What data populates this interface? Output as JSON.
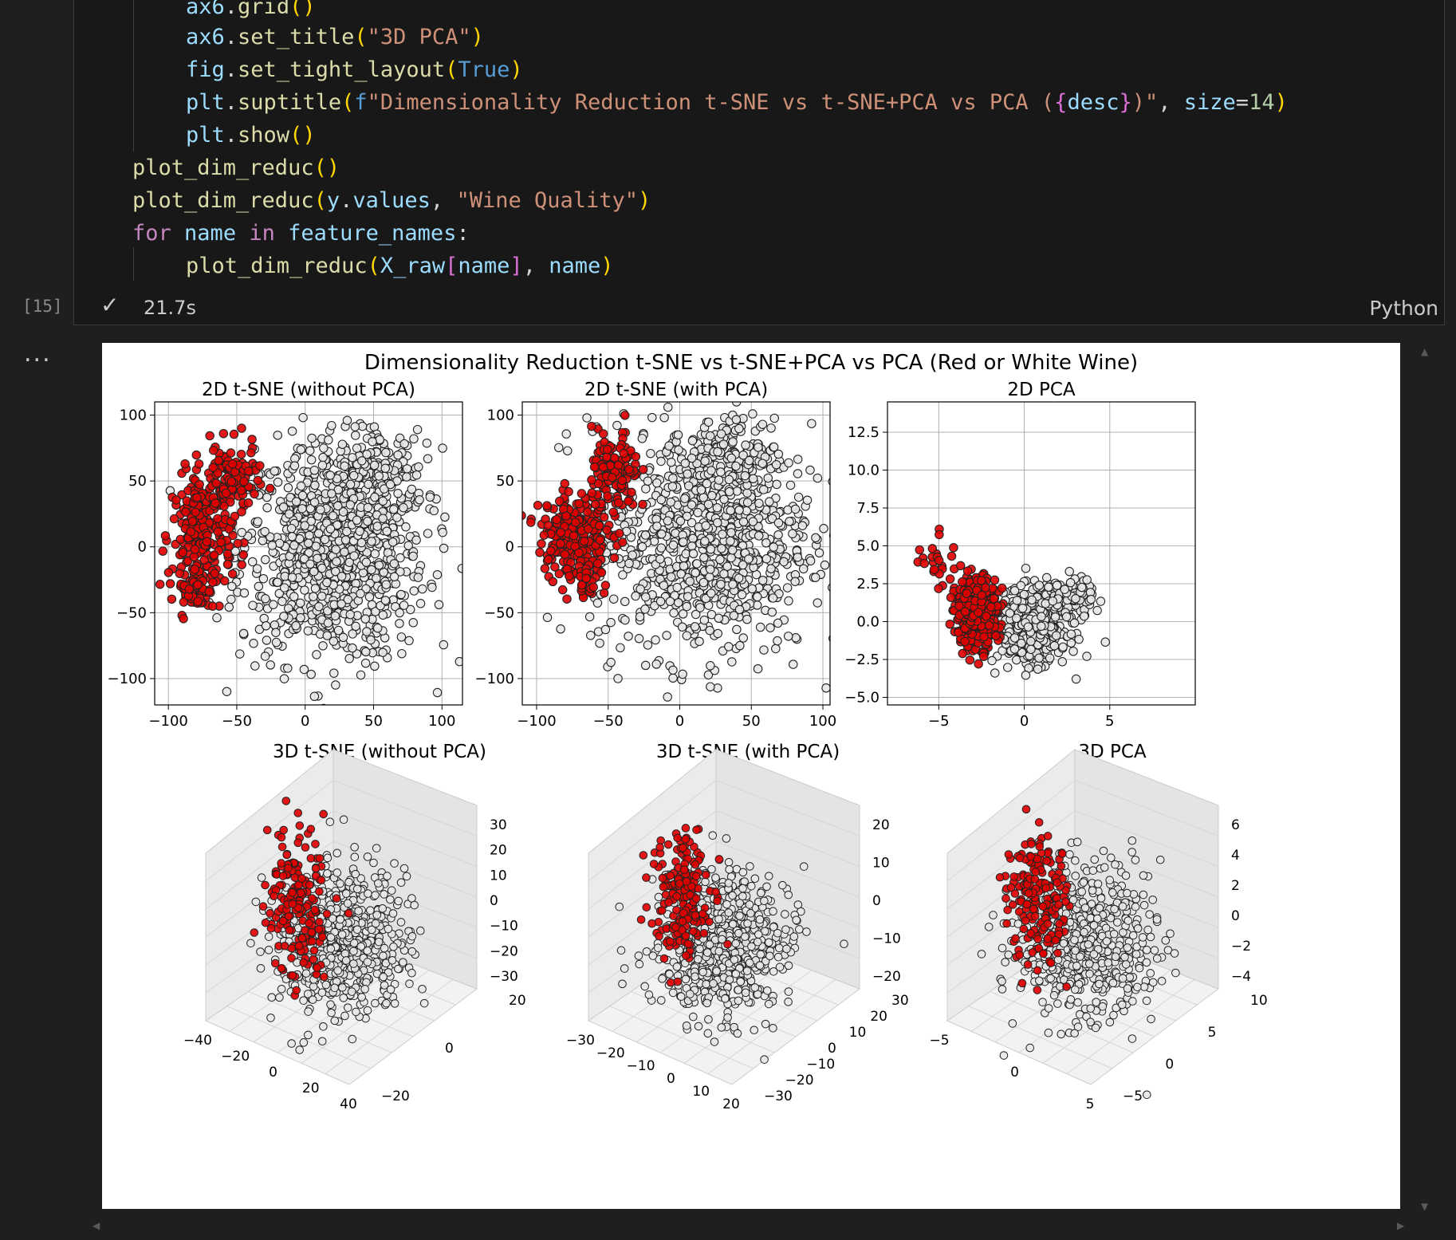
{
  "cell": {
    "execution_count": "[15]",
    "status": "✓",
    "duration": "21.7s",
    "language": "Python",
    "code_lines": [
      "ax6.grid()",
      "ax6.set_title(\"3D PCA\")",
      "fig.set_tight_layout(True)",
      "plt.suptitle(f\"Dimensionality Reduction t-SNE vs t-SNE+PCA vs PCA ({desc})\", size=14)",
      "plt.show()",
      "plot_dim_reduc()",
      "plot_dim_reduc(y.values, \"Wine Quality\")",
      "for name in feature_names:",
      "plot_dim_reduc(X_raw[name], name)"
    ]
  },
  "output": {
    "more_label": "...",
    "figure_title": "Dimensionality Reduction t-SNE vs t-SNE+PCA vs PCA (Red or White Wine)"
  },
  "colors": {
    "red_points": "#e00000",
    "white_points": "#e8e8e8",
    "edge": "#222222"
  },
  "chart_data": [
    {
      "type": "scatter",
      "title": "2D t-SNE (without PCA)",
      "xlim": [
        -110,
        115
      ],
      "ylim": [
        -120,
        110
      ],
      "xticks": [
        -100,
        -50,
        0,
        50,
        100
      ],
      "yticks": [
        -100,
        -50,
        0,
        50,
        100
      ],
      "grid": true,
      "series": [
        {
          "color": "red",
          "clusters": [
            {
              "cx": -75,
              "cy": 10,
              "rx": 20,
              "ry": 40,
              "n": 230
            },
            {
              "cx": -55,
              "cy": 50,
              "rx": 18,
              "ry": 25,
              "n": 120
            },
            {
              "cx": -80,
              "cy": -30,
              "rx": 12,
              "ry": 15,
              "n": 60
            }
          ]
        },
        {
          "color": "white",
          "clusters": [
            {
              "cx": 20,
              "cy": -5,
              "rx": 62,
              "ry": 75,
              "n": 900
            },
            {
              "cx": 50,
              "cy": 55,
              "rx": 35,
              "ry": 30,
              "n": 150
            }
          ]
        }
      ]
    },
    {
      "type": "scatter",
      "title": "2D t-SNE (with PCA)",
      "xlim": [
        -110,
        105
      ],
      "ylim": [
        -120,
        110
      ],
      "xticks": [
        -100,
        -50,
        0,
        50,
        100
      ],
      "yticks": [
        -100,
        -50,
        0,
        50,
        100
      ],
      "grid": true,
      "series": [
        {
          "color": "red",
          "clusters": [
            {
              "cx": -75,
              "cy": 10,
              "rx": 22,
              "ry": 28,
              "n": 200
            },
            {
              "cx": -45,
              "cy": 55,
              "rx": 15,
              "ry": 30,
              "n": 130
            },
            {
              "cx": -65,
              "cy": -25,
              "rx": 15,
              "ry": 15,
              "n": 50
            }
          ]
        },
        {
          "color": "white",
          "clusters": [
            {
              "cx": 15,
              "cy": 5,
              "rx": 70,
              "ry": 80,
              "n": 900
            },
            {
              "cx": 40,
              "cy": 70,
              "rx": 30,
              "ry": 25,
              "n": 120
            }
          ]
        }
      ]
    },
    {
      "type": "scatter",
      "title": "2D PCA",
      "xlim": [
        -8,
        10
      ],
      "ylim": [
        -5.5,
        14.5
      ],
      "xticks": [
        -5,
        0,
        5
      ],
      "yticks": [
        -5.0,
        -2.5,
        0.0,
        2.5,
        5.0,
        7.5,
        10.0,
        12.5
      ],
      "grid": true,
      "series": [
        {
          "color": "red",
          "clusters": [
            {
              "cx": -2.8,
              "cy": 0.6,
              "rx": 1.1,
              "ry": 2.1,
              "n": 350
            },
            {
              "cx": -5.0,
              "cy": 4.0,
              "rx": 1.2,
              "ry": 2.0,
              "n": 25
            }
          ]
        },
        {
          "color": "white",
          "clusters": [
            {
              "cx": 0.5,
              "cy": -0.3,
              "rx": 1.8,
              "ry": 2.1,
              "n": 550
            },
            {
              "cx": 2.5,
              "cy": 1.5,
              "rx": 1.4,
              "ry": 1.2,
              "n": 120
            }
          ]
        }
      ]
    },
    {
      "type": "scatter3d",
      "title": "3D t-SNE (without PCA)",
      "xticks": [
        -40,
        -20,
        0,
        20,
        40
      ],
      "yticks": [
        -20,
        0,
        20
      ],
      "zticks": [
        -30,
        -20,
        -10,
        0,
        10,
        20,
        30
      ]
    },
    {
      "type": "scatter3d",
      "title": "3D t-SNE (with PCA)",
      "xticks": [
        -30,
        -20,
        -10,
        0,
        10,
        20
      ],
      "yticks": [
        -30,
        -20,
        -10,
        0,
        10,
        20,
        30
      ],
      "zticks": [
        -20,
        -10,
        0,
        10,
        20
      ]
    },
    {
      "type": "scatter3d",
      "title": "3D PCA",
      "xticks": [
        -5,
        0,
        5
      ],
      "yticks": [
        -5,
        0,
        5,
        10
      ],
      "zticks": [
        -4,
        -2,
        0,
        2,
        4,
        6
      ]
    }
  ]
}
